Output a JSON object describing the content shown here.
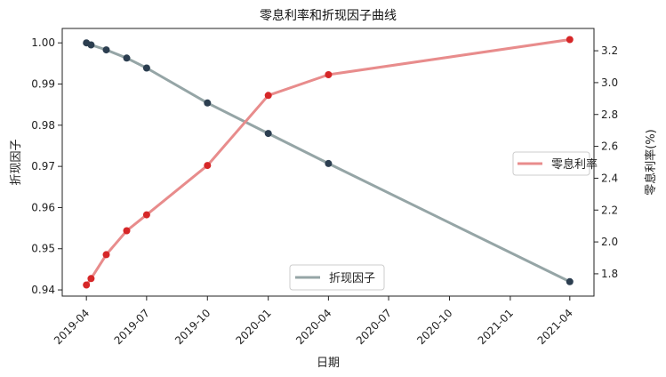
{
  "chart_data": {
    "type": "line",
    "title": "零息利率和折现因子曲线",
    "xlabel": "日期",
    "ylabel_left": "折现因子",
    "ylabel_right": "零息利率(%)",
    "x_ticks": [
      "2019-04",
      "2019-07",
      "2019-10",
      "2020-01",
      "2020-04",
      "2020-07",
      "2020-10",
      "2021-01",
      "2021-04"
    ],
    "y_left_ticks": [
      "0.94",
      "0.95",
      "0.96",
      "0.97",
      "0.98",
      "0.99",
      "1.00"
    ],
    "y_right_ticks": [
      "1.8",
      "2.0",
      "2.2",
      "2.4",
      "2.6",
      "2.8",
      "3.0",
      "3.2"
    ],
    "ylim_left": [
      0.9385,
      1.0035
    ],
    "ylim_right": [
      1.66,
      3.34
    ],
    "grid": false,
    "series": [
      {
        "name": "折现因子",
        "axis": "left",
        "color": "#95a5a6",
        "marker_color": "#2c3e50",
        "x": [
          "2019-04-01",
          "2019-04-08",
          "2019-05-01",
          "2019-06-01",
          "2019-07-01",
          "2019-10-01",
          "2020-01-01",
          "2020-04-01",
          "2021-04-01"
        ],
        "values": [
          1.0,
          0.9995,
          0.9983,
          0.9963,
          0.9939,
          0.9854,
          0.978,
          0.9707,
          0.942
        ]
      },
      {
        "name": "零息利率",
        "axis": "right",
        "color": "#e88c8c",
        "marker_color": "#d62728",
        "x": [
          "2019-04-01",
          "2019-04-08",
          "2019-05-01",
          "2019-06-01",
          "2019-07-01",
          "2019-10-01",
          "2020-01-01",
          "2020-04-01",
          "2021-04-01"
        ],
        "values": [
          1.73,
          1.77,
          1.92,
          2.07,
          2.17,
          2.48,
          2.92,
          3.05,
          3.27
        ]
      }
    ],
    "legends": [
      {
        "label": "零息利率",
        "placement": "right",
        "color": "#e88c8c"
      },
      {
        "label": "折现因子",
        "placement": "bottom-center",
        "color": "#95a5a6"
      }
    ]
  }
}
